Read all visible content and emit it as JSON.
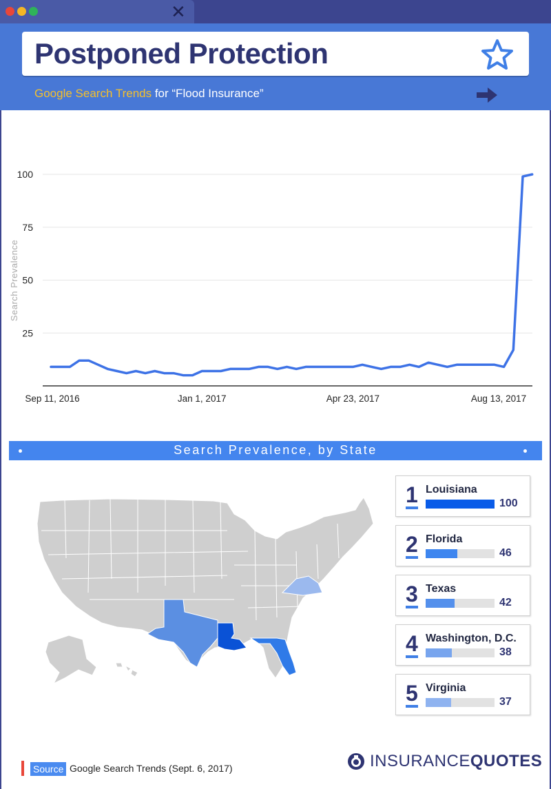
{
  "window": {
    "close_glyph": "✕"
  },
  "header": {
    "title": "Postponed Protection",
    "subtitle_highlight": "Google Search Trends",
    "subtitle_rest": " for “Flood Insurance”",
    "icons": [
      "star-icon",
      "arrow-right-icon"
    ]
  },
  "chart_data": {
    "type": "line",
    "title": "",
    "ylabel": "Search Prevalence",
    "xlabel": "",
    "ylim": [
      0,
      100
    ],
    "yticks": [
      25,
      50,
      75,
      100
    ],
    "x_tick_labels": [
      "Sep 11, 2016",
      "Jan 1, 2017",
      "Apr 23, 2017",
      "Aug 13, 2017"
    ],
    "x_tick_weeks": [
      0,
      16,
      32,
      48
    ],
    "color": "#3d72e6",
    "grid": true,
    "series": [
      {
        "values": [
          9,
          9,
          9,
          12,
          12,
          10,
          8,
          7,
          6,
          7,
          6,
          7,
          6,
          6,
          5,
          5,
          7,
          7,
          7,
          8,
          8,
          8,
          9,
          9,
          8,
          9,
          8,
          9,
          9,
          9,
          9,
          9,
          9,
          10,
          9,
          8,
          9,
          9,
          10,
          9,
          11,
          10,
          9,
          10,
          10,
          10,
          10,
          10,
          9,
          17,
          99,
          100
        ]
      }
    ]
  },
  "states_section": {
    "banner": "Search Prevalence, by State",
    "map_highlights": {
      "Louisiana": "#0a52d6",
      "Florida": "#2f7ae8",
      "Texas": "#5b8fe2",
      "Virginia": "#9bb9ee"
    },
    "rankings": [
      {
        "rank": "1",
        "name": "Louisiana",
        "value": "100",
        "fraction": 1.0,
        "color": "#0a5ce8"
      },
      {
        "rank": "2",
        "name": "Florida",
        "value": "46",
        "fraction": 0.46,
        "color": "#3e86ef"
      },
      {
        "rank": "3",
        "name": "Texas",
        "value": "42",
        "fraction": 0.42,
        "color": "#5490ec"
      },
      {
        "rank": "4",
        "name": "Washington, D.C.",
        "value": "38",
        "fraction": 0.38,
        "color": "#78a5ee"
      },
      {
        "rank": "5",
        "name": "Virginia",
        "value": "37",
        "fraction": 0.37,
        "color": "#8fb3f0"
      }
    ]
  },
  "footer": {
    "source_label": "Source",
    "source_text": "Google Search Trends (Sept. 6, 2017)",
    "logo_part1": "INSURANCE",
    "logo_part2": "QUOTES"
  }
}
